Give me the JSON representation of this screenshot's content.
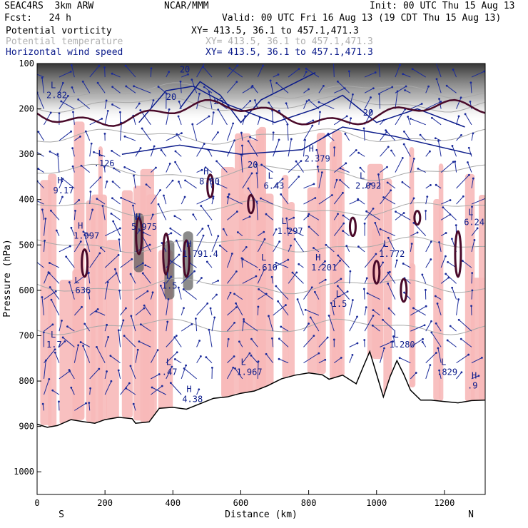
{
  "header": {
    "model": "SEAC4RS  3km ARW",
    "org": "NCAR/MMM",
    "init": "Init: 00 UTC Thu 15 Aug 13",
    "fcst": "Fcst:   24 h",
    "valid": "Valid: 00 UTC Fri 16 Aug 13 (19 CDT Thu 15 Aug 13)",
    "fields": [
      {
        "name": "Potential vorticity",
        "xy": "XY= 413.5, 36.1 to 457.1,471.3",
        "color": "#000000"
      },
      {
        "name": "Potential temperature",
        "xy": "XY= 413.5, 36.1 to 457.1,471.3",
        "color": "#b0b0b0"
      },
      {
        "name": "Horizontal wind speed",
        "xy": "XY= 413.5, 36.1 to 457.1,471.3",
        "color": "#0a1a8a"
      }
    ]
  },
  "chart_data": {
    "type": "cross-section",
    "xlabel": "Distance (km)",
    "ylabel": "Pressure (hPa)",
    "xlim": [
      0,
      1320
    ],
    "ylim": [
      1050,
      100
    ],
    "x_ticks": [
      0,
      200,
      400,
      600,
      800,
      1000,
      1200
    ],
    "y_ticks": [
      100,
      200,
      300,
      400,
      500,
      600,
      700,
      800,
      900,
      1000
    ],
    "x_end_labels": {
      "left": "S",
      "right": "N"
    },
    "terrain_surface": [
      [
        0,
        895
      ],
      [
        30,
        902
      ],
      [
        60,
        898
      ],
      [
        100,
        885
      ],
      [
        140,
        890
      ],
      [
        170,
        893
      ],
      [
        200,
        885
      ],
      [
        240,
        880
      ],
      [
        280,
        883
      ],
      [
        290,
        893
      ],
      [
        330,
        890
      ],
      [
        360,
        860
      ],
      [
        400,
        858
      ],
      [
        440,
        862
      ],
      [
        480,
        850
      ],
      [
        520,
        838
      ],
      [
        560,
        835
      ],
      [
        600,
        827
      ],
      [
        640,
        822
      ],
      [
        680,
        810
      ],
      [
        720,
        795
      ],
      [
        760,
        787
      ],
      [
        800,
        782
      ],
      [
        840,
        786
      ],
      [
        860,
        796
      ],
      [
        900,
        787
      ],
      [
        940,
        806
      ],
      [
        960,
        770
      ],
      [
        980,
        735
      ],
      [
        1000,
        785
      ],
      [
        1020,
        835
      ],
      [
        1040,
        790
      ],
      [
        1060,
        755
      ],
      [
        1080,
        785
      ],
      [
        1100,
        820
      ],
      [
        1130,
        842
      ],
      [
        1160,
        842
      ],
      [
        1200,
        845
      ],
      [
        1240,
        848
      ],
      [
        1280,
        843
      ],
      [
        1320,
        842
      ]
    ],
    "theta_contour_levels": [
      310,
      320,
      330,
      340,
      350
    ],
    "wind_speed_contour_labels": [
      {
        "x": 960,
        "p": 215,
        "text": "20"
      },
      {
        "x": 620,
        "p": 330,
        "text": "20"
      },
      {
        "x": 420,
        "p": 120,
        "text": "20"
      },
      {
        "x": 380,
        "p": 180,
        "text": "20"
      },
      {
        "x": 520,
        "p": 190,
        "text": "25"
      }
    ],
    "pv_extrema": [
      {
        "kind": "L",
        "x": 40,
        "p": 170,
        "value": "2.82"
      },
      {
        "kind": "L",
        "x": 180,
        "p": 320,
        "value": ".126"
      },
      {
        "kind": "H",
        "x": 60,
        "p": 380,
        "value": "9.17"
      },
      {
        "kind": "H",
        "x": 120,
        "p": 480,
        "value": "1.997"
      },
      {
        "kind": "H",
        "x": 290,
        "p": 460,
        "value": "5.975"
      },
      {
        "kind": "L",
        "x": 110,
        "p": 600,
        "value": ".636"
      },
      {
        "kind": "H",
        "x": 490,
        "p": 360,
        "value": "8.80"
      },
      {
        "kind": "L",
        "x": 680,
        "p": 370,
        "value": "6.43"
      },
      {
        "kind": "L",
        "x": 720,
        "p": 470,
        "value": "1.297"
      },
      {
        "kind": "L",
        "x": 660,
        "p": 550,
        "value": ".610"
      },
      {
        "kind": "H",
        "x": 440,
        "p": 520,
        "value": "1.791.4"
      },
      {
        "kind": "L",
        "x": 380,
        "p": 590,
        "value": "1.5"
      },
      {
        "kind": "H",
        "x": 800,
        "p": 310,
        "value": "2.379"
      },
      {
        "kind": "L",
        "x": 950,
        "p": 370,
        "value": "2.092"
      },
      {
        "kind": "L",
        "x": 1020,
        "p": 520,
        "value": "1.772"
      },
      {
        "kind": "H",
        "x": 820,
        "p": 550,
        "value": "1.201"
      },
      {
        "kind": "L",
        "x": 1270,
        "p": 450,
        "value": "6.249"
      },
      {
        "kind": "L",
        "x": 40,
        "p": 720,
        "value": "1.7"
      },
      {
        "kind": "L",
        "x": 380,
        "p": 780,
        "value": ".47"
      },
      {
        "kind": "L",
        "x": 600,
        "p": 780,
        "value": "1.967"
      },
      {
        "kind": "L",
        "x": 1050,
        "p": 720,
        "value": "1.280"
      },
      {
        "kind": "L",
        "x": 1190,
        "p": 780,
        "value": ".829"
      },
      {
        "kind": "H",
        "x": 1280,
        "p": 810,
        "value": ".9"
      },
      {
        "kind": "H",
        "x": 440,
        "p": 840,
        "value": "4.38"
      },
      {
        "kind": "L",
        "x": 880,
        "p": 630,
        "value": "1.5"
      }
    ]
  }
}
